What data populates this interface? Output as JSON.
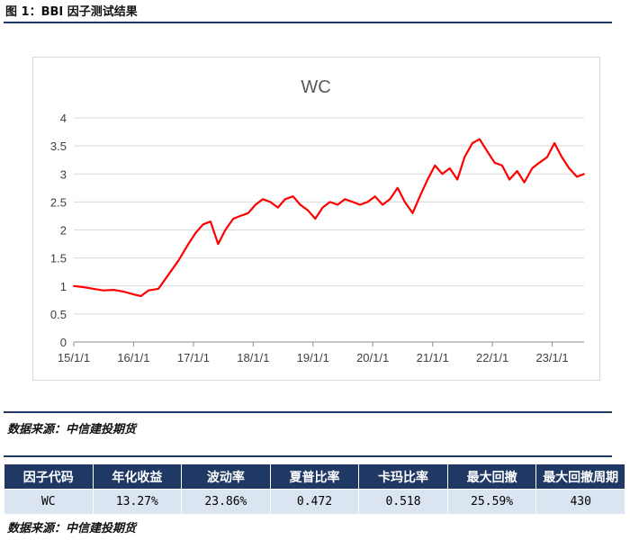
{
  "header": {
    "title": "图 1：BBI 因子测试结果"
  },
  "source_label": "数据来源：中信建投期货",
  "table": {
    "headers": [
      "因子代码",
      "年化收益",
      "波动率",
      "夏普比率",
      "卡玛比率",
      "最大回撤",
      "最大回撤周期"
    ],
    "rows": [
      [
        "WC",
        "13.27%",
        "23.86%",
        "0.472",
        "0.518",
        "25.59%",
        "430"
      ]
    ]
  },
  "chart_data": {
    "type": "line",
    "title": "WC",
    "xlabel": "",
    "ylabel": "",
    "x_range": [
      "2015-01-01",
      "2023-07-15"
    ],
    "ylim": [
      0,
      4
    ],
    "yticks": [
      "0",
      "0.5",
      "1",
      "1.5",
      "2",
      "2.5",
      "3",
      "3.5",
      "4"
    ],
    "xticks": [
      "15/1/1",
      "16/1/1",
      "17/1/1",
      "18/1/1",
      "19/1/1",
      "20/1/1",
      "21/1/1",
      "22/1/1",
      "23/1/1"
    ],
    "grid": "horizontal",
    "legend": "none",
    "color": "#ff0000",
    "series": [
      {
        "x": [
          "2015-01-01",
          "2015-03-01",
          "2015-05-01",
          "2015-07-01",
          "2015-09-01",
          "2015-11-01",
          "2016-01-01",
          "2016-02-15",
          "2016-04-01",
          "2016-06-01",
          "2016-08-01",
          "2016-10-01",
          "2016-12-01",
          "2017-01-15",
          "2017-03-01",
          "2017-04-15",
          "2017-06-01",
          "2017-07-15",
          "2017-09-01",
          "2017-10-15",
          "2017-12-01",
          "2018-01-15",
          "2018-03-01",
          "2018-04-15",
          "2018-06-01",
          "2018-07-15",
          "2018-09-01",
          "2018-10-15",
          "2018-12-01",
          "2019-01-15",
          "2019-03-01",
          "2019-04-15",
          "2019-06-01",
          "2019-07-15",
          "2019-09-01",
          "2019-10-15",
          "2019-12-01",
          "2020-01-15",
          "2020-03-01",
          "2020-04-15",
          "2020-06-01",
          "2020-07-15",
          "2020-09-01",
          "2020-10-15",
          "2020-12-01",
          "2021-01-15",
          "2021-03-01",
          "2021-04-15",
          "2021-06-01",
          "2021-07-15",
          "2021-09-01",
          "2021-10-15",
          "2021-12-01",
          "2022-01-15",
          "2022-03-01",
          "2022-04-15",
          "2022-06-01",
          "2022-07-15",
          "2022-09-01",
          "2022-10-15",
          "2022-12-01",
          "2023-01-15",
          "2023-03-01",
          "2023-04-15",
          "2023-06-01",
          "2023-07-15"
        ],
        "y": [
          1.0,
          0.98,
          0.95,
          0.92,
          0.93,
          0.9,
          0.85,
          0.82,
          0.92,
          0.95,
          1.2,
          1.45,
          1.75,
          1.95,
          2.1,
          2.15,
          1.75,
          2.0,
          2.2,
          2.25,
          2.3,
          2.45,
          2.55,
          2.5,
          2.4,
          2.55,
          2.6,
          2.45,
          2.35,
          2.2,
          2.4,
          2.5,
          2.45,
          2.55,
          2.5,
          2.45,
          2.5,
          2.6,
          2.45,
          2.55,
          2.75,
          2.5,
          2.3,
          2.6,
          2.9,
          3.15,
          3.0,
          3.1,
          2.9,
          3.3,
          3.55,
          3.62,
          3.4,
          3.2,
          3.15,
          2.9,
          3.05,
          2.85,
          3.1,
          3.2,
          3.3,
          3.55,
          3.3,
          3.1,
          2.95,
          3.0
        ]
      }
    ]
  }
}
